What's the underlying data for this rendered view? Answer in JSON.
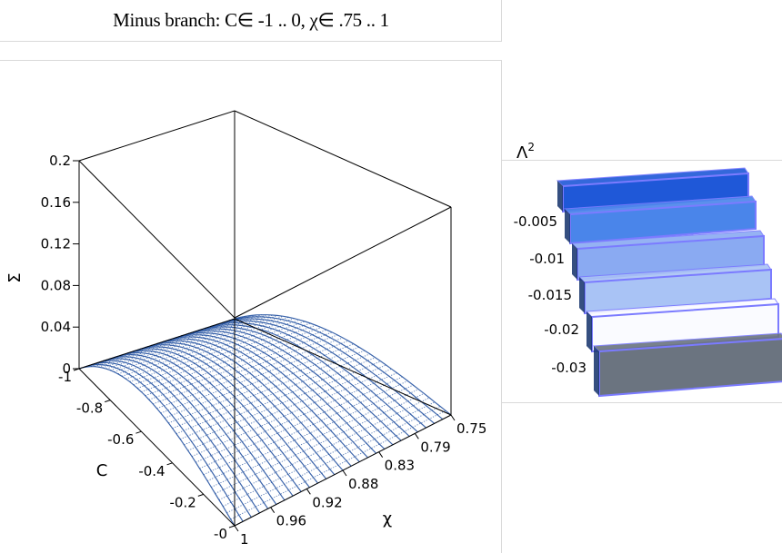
{
  "title": "Minus branch: C∈ -1 .. 0,  χ∈ .75 .. 1",
  "chart_data": [
    {
      "type": "surface3d",
      "zlabel": "Σ",
      "clabel": "C",
      "xlabel": "χ",
      "z_ticks": [
        "0",
        "0.04",
        "0.08",
        "0.12",
        "0.16",
        "0.2"
      ],
      "c_ticks": [
        "-1",
        "-0.8",
        "-0.6",
        "-0.4",
        "-0.2",
        "-0"
      ],
      "chi_ticks": [
        "1",
        "0.96",
        "0.92",
        "0.88",
        "0.83",
        "0.79",
        "0.75"
      ],
      "c_range": [
        -1,
        0
      ],
      "chi_range": [
        0.75,
        1
      ],
      "z_range": [
        0,
        0.2
      ],
      "peak_sigma": 0.05,
      "surface_color": "#1a4a9c"
    },
    {
      "type": "colorbar",
      "label": "Λ",
      "label_superscript": "2",
      "ticks": [
        "-0.005",
        "-0.01",
        "-0.015",
        "-0.02",
        "-0.03"
      ],
      "colors": [
        "#1f58d8",
        "#4a85ea",
        "#8aaaf2",
        "#a9c3f5",
        "#fafbff",
        "#6b7480"
      ]
    }
  ]
}
